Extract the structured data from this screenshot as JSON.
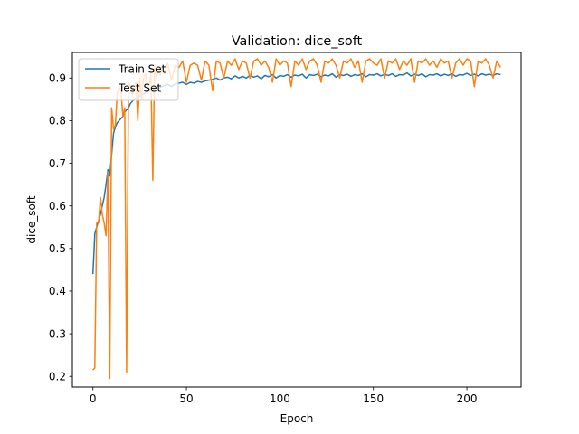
{
  "chart_data": {
    "type": "line",
    "title": "Validation: dice_soft",
    "xlabel": "Epoch",
    "ylabel": "dice_soft",
    "xlim": [
      -11,
      229
    ],
    "ylim": [
      0.175,
      0.96
    ],
    "xticks": [
      0,
      50,
      100,
      150,
      200
    ],
    "xtick_labels": [
      "0",
      "50",
      "100",
      "150",
      "200"
    ],
    "yticks": [
      0.2,
      0.3,
      0.4,
      0.5,
      0.6,
      0.7,
      0.8,
      0.9
    ],
    "ytick_labels": [
      "0.2",
      "0.3",
      "0.4",
      "0.5",
      "0.6",
      "0.7",
      "0.8",
      "0.9"
    ],
    "grid": false,
    "legend_position": "upper left",
    "series": [
      {
        "name": "Train Set",
        "color": "#1f77b4",
        "x": [
          0,
          1,
          2,
          3,
          4,
          5,
          6,
          7,
          8,
          9,
          10,
          11,
          12,
          13,
          14,
          15,
          16,
          17,
          18,
          19,
          20,
          22,
          24,
          26,
          28,
          30,
          32,
          34,
          36,
          38,
          40,
          42,
          44,
          46,
          48,
          50,
          52,
          54,
          56,
          58,
          60,
          62,
          64,
          66,
          68,
          70,
          72,
          74,
          76,
          78,
          80,
          82,
          84,
          86,
          88,
          90,
          92,
          94,
          96,
          98,
          100,
          102,
          104,
          106,
          108,
          110,
          112,
          114,
          116,
          118,
          120,
          122,
          124,
          126,
          128,
          130,
          132,
          134,
          136,
          138,
          140,
          142,
          144,
          146,
          148,
          150,
          152,
          154,
          156,
          158,
          160,
          162,
          164,
          166,
          168,
          170,
          172,
          174,
          176,
          178,
          180,
          182,
          184,
          186,
          188,
          190,
          192,
          194,
          196,
          198,
          200,
          202,
          204,
          206,
          208,
          210,
          212,
          214,
          216,
          218
        ],
        "values": [
          0.44,
          0.535,
          0.55,
          0.565,
          0.58,
          0.6,
          0.62,
          0.65,
          0.685,
          0.67,
          0.72,
          0.77,
          0.785,
          0.795,
          0.8,
          0.805,
          0.81,
          0.82,
          0.825,
          0.83,
          0.84,
          0.85,
          0.855,
          0.86,
          0.865,
          0.87,
          0.875,
          0.872,
          0.878,
          0.882,
          0.885,
          0.88,
          0.886,
          0.888,
          0.89,
          0.885,
          0.89,
          0.888,
          0.892,
          0.89,
          0.893,
          0.895,
          0.897,
          0.9,
          0.895,
          0.9,
          0.902,
          0.898,
          0.905,
          0.9,
          0.904,
          0.9,
          0.906,
          0.902,
          0.905,
          0.898,
          0.906,
          0.903,
          0.908,
          0.9,
          0.906,
          0.904,
          0.908,
          0.902,
          0.907,
          0.905,
          0.909,
          0.9,
          0.908,
          0.906,
          0.909,
          0.903,
          0.907,
          0.905,
          0.91,
          0.902,
          0.908,
          0.906,
          0.909,
          0.904,
          0.908,
          0.906,
          0.91,
          0.903,
          0.908,
          0.907,
          0.91,
          0.905,
          0.909,
          0.906,
          0.91,
          0.904,
          0.908,
          0.907,
          0.912,
          0.905,
          0.909,
          0.906,
          0.91,
          0.903,
          0.908,
          0.907,
          0.91,
          0.905,
          0.909,
          0.906,
          0.91,
          0.904,
          0.908,
          0.907,
          0.911,
          0.906,
          0.909,
          0.905,
          0.91,
          0.907,
          0.909,
          0.906,
          0.91,
          0.908
        ]
      },
      {
        "name": "Test Set",
        "color": "#ff7f0e",
        "x": [
          0,
          1,
          2,
          3,
          4,
          5,
          6,
          7,
          8,
          9,
          10,
          11,
          12,
          13,
          14,
          15,
          16,
          17,
          18,
          19,
          20,
          21,
          22,
          23,
          24,
          25,
          26,
          27,
          28,
          29,
          30,
          31,
          32,
          33,
          34,
          35,
          36,
          37,
          38,
          40,
          42,
          44,
          46,
          48,
          50,
          52,
          54,
          56,
          58,
          60,
          62,
          64,
          66,
          68,
          70,
          72,
          74,
          76,
          78,
          80,
          82,
          84,
          86,
          88,
          90,
          92,
          94,
          96,
          98,
          100,
          102,
          104,
          106,
          108,
          110,
          112,
          114,
          116,
          118,
          120,
          122,
          124,
          126,
          128,
          130,
          132,
          134,
          136,
          138,
          140,
          142,
          144,
          146,
          148,
          150,
          152,
          154,
          156,
          158,
          160,
          162,
          164,
          166,
          168,
          170,
          172,
          174,
          176,
          178,
          180,
          182,
          184,
          186,
          188,
          190,
          192,
          194,
          196,
          198,
          200,
          202,
          204,
          206,
          208,
          210,
          212,
          214,
          216,
          218
        ],
        "values": [
          0.215,
          0.22,
          0.56,
          0.56,
          0.62,
          0.58,
          0.56,
          0.53,
          0.68,
          0.195,
          0.83,
          0.78,
          0.79,
          0.865,
          0.88,
          0.87,
          0.81,
          0.83,
          0.21,
          0.89,
          0.88,
          0.86,
          0.87,
          0.89,
          0.8,
          0.9,
          0.85,
          0.9,
          0.91,
          0.89,
          0.88,
          0.91,
          0.66,
          0.93,
          0.9,
          0.92,
          0.905,
          0.93,
          0.91,
          0.935,
          0.895,
          0.93,
          0.925,
          0.94,
          0.89,
          0.93,
          0.935,
          0.93,
          0.895,
          0.94,
          0.93,
          0.87,
          0.94,
          0.935,
          0.9,
          0.94,
          0.93,
          0.945,
          0.92,
          0.94,
          0.935,
          0.9,
          0.94,
          0.945,
          0.93,
          0.94,
          0.925,
          0.89,
          0.945,
          0.93,
          0.94,
          0.935,
          0.88,
          0.94,
          0.93,
          0.945,
          0.92,
          0.94,
          0.945,
          0.93,
          0.89,
          0.94,
          0.935,
          0.945,
          0.93,
          0.9,
          0.94,
          0.935,
          0.945,
          0.925,
          0.94,
          0.89,
          0.94,
          0.945,
          0.935,
          0.93,
          0.945,
          0.9,
          0.94,
          0.935,
          0.945,
          0.92,
          0.94,
          0.93,
          0.945,
          0.89,
          0.94,
          0.935,
          0.945,
          0.93,
          0.94,
          0.925,
          0.945,
          0.935,
          0.94,
          0.9,
          0.935,
          0.945,
          0.93,
          0.945,
          0.94,
          0.88,
          0.94,
          0.935,
          0.945,
          0.93,
          0.9,
          0.94,
          0.925
        ]
      }
    ]
  }
}
